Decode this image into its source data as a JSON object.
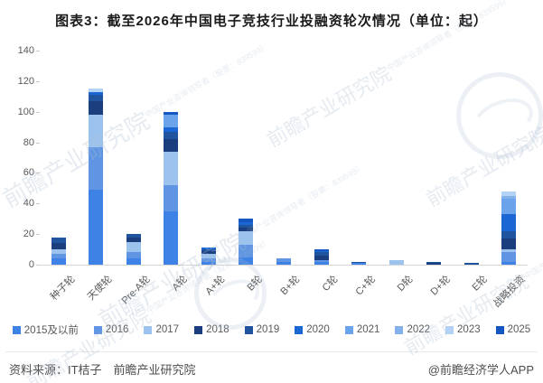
{
  "title": "图表3：截至2026年中国电子竞技行业投融资轮次情况（单位：起）",
  "watermark": {
    "text": "前瞻产业研究院",
    "subtext": "中国产业咨询领导者（股票：839599）"
  },
  "chart_data": {
    "type": "bar",
    "stacked": true,
    "title": "截至2026年中国电子竞技行业投融资轮次情况",
    "unit": "起",
    "grid": false,
    "legend_position": "bottom",
    "ylim": [
      0,
      140
    ],
    "yticks": [
      0,
      20,
      40,
      60,
      80,
      100,
      120,
      140
    ],
    "categories": [
      "种子轮",
      "天使轮",
      "Pre-A轮",
      "A轮",
      "A+轮",
      "B轮",
      "B+轮",
      "C轮",
      "C+轮",
      "D轮",
      "D+轮",
      "E轮",
      "战略投资"
    ],
    "series": [
      {
        "name": "2015及以前",
        "color": "#3f82e6",
        "values": [
          4,
          49,
          4,
          35,
          2,
          5,
          2,
          2,
          1,
          0,
          0,
          0,
          2
        ]
      },
      {
        "name": "2016",
        "color": "#5f95e2",
        "values": [
          3,
          28,
          4,
          17,
          2,
          8,
          2,
          1,
          0,
          0,
          0,
          0,
          6
        ]
      },
      {
        "name": "2017",
        "color": "#9cc3ee",
        "values": [
          3,
          21,
          7,
          22,
          3,
          9,
          0,
          0,
          0,
          3,
          0,
          0,
          2
        ]
      },
      {
        "name": "2018",
        "color": "#1b3e7e",
        "values": [
          4,
          9,
          3,
          8,
          2,
          2,
          0,
          3,
          0,
          0,
          1,
          0,
          7
        ]
      },
      {
        "name": "2019",
        "color": "#21549e",
        "values": [
          4,
          4,
          2,
          5,
          1,
          2,
          0,
          2,
          1,
          0,
          1,
          1,
          5
        ]
      },
      {
        "name": "2020",
        "color": "#1a66d2",
        "values": [
          0,
          2,
          0,
          3,
          1,
          2,
          0,
          1,
          0,
          0,
          0,
          0,
          11
        ]
      },
      {
        "name": "2021",
        "color": "#6ba3ea",
        "values": [
          0,
          0,
          0,
          8,
          0,
          0,
          0,
          0,
          0,
          0,
          0,
          0,
          10
        ]
      },
      {
        "name": "2022",
        "color": "#84b1ec",
        "values": [
          0,
          0,
          0,
          0,
          0,
          0,
          0,
          0,
          0,
          0,
          0,
          0,
          2
        ]
      },
      {
        "name": "2023",
        "color": "#b4d3f4",
        "values": [
          0,
          2,
          0,
          0,
          0,
          0,
          0,
          0,
          0,
          0,
          0,
          0,
          3
        ]
      },
      {
        "name": "2025",
        "color": "#1457c2",
        "values": [
          0,
          0,
          0,
          2,
          0,
          2,
          0,
          1,
          0,
          0,
          0,
          0,
          0
        ]
      }
    ]
  },
  "footer": {
    "source": "资料来源：IT桔子　前瞻产业研究院",
    "credit": "@前瞻经济学人APP"
  }
}
